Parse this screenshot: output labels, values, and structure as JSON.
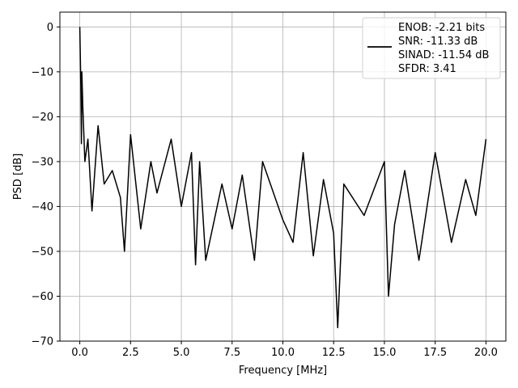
{
  "chart_data": {
    "type": "line",
    "title": "",
    "xlabel": "Frequency [MHz]",
    "ylabel": "PSD [dB]",
    "xlim": [
      -0.98,
      20.98
    ],
    "ylim": [
      -70,
      3.3
    ],
    "xticks": [
      0.0,
      2.5,
      5.0,
      7.5,
      10.0,
      12.5,
      15.0,
      17.5,
      20.0
    ],
    "xtick_labels": [
      "0.0",
      "2.5",
      "5.0",
      "7.5",
      "10.0",
      "12.5",
      "15.0",
      "17.5",
      "20.0"
    ],
    "yticks": [
      0,
      -10,
      -20,
      -30,
      -40,
      -50,
      -60,
      -70
    ],
    "ytick_labels": [
      "0",
      "−10",
      "−20",
      "−30",
      "−40",
      "−50",
      "−60",
      "−70"
    ],
    "grid": true,
    "legend_position": "top-right",
    "legend_entries": [
      "ENOB: -2.21 bits",
      "SNR: -11.33 dB",
      "SINAD: -11.54 dB",
      "SFDR: 3.41"
    ],
    "series": [
      {
        "color": "#000000",
        "x": [
          0.0,
          0.02,
          0.05,
          0.08,
          0.1,
          0.15,
          0.25,
          0.4,
          0.6,
          0.9,
          1.2,
          1.6,
          2.0,
          2.2,
          2.5,
          3.0,
          3.5,
          3.8,
          4.5,
          5.0,
          5.5,
          5.7,
          5.9,
          6.2,
          7.0,
          7.5,
          8.0,
          8.6,
          9.0,
          10.0,
          10.5,
          11.0,
          11.5,
          12.0,
          12.5,
          12.7,
          13.0,
          14.0,
          15.0,
          15.2,
          15.5,
          16.0,
          16.7,
          17.5,
          18.3,
          19.0,
          19.5,
          20.0
        ],
        "y": [
          0,
          -5,
          -13,
          -26,
          -10,
          -18,
          -30,
          -25,
          -41,
          -22,
          -35,
          -32,
          -38,
          -50,
          -24,
          -45,
          -30,
          -37,
          -25,
          -40,
          -28,
          -53,
          -30,
          -52,
          -35,
          -45,
          -33,
          -52,
          -30,
          -43,
          -48,
          -28,
          -51,
          -34,
          -46,
          -67,
          -35,
          -42,
          -30,
          -60,
          -44,
          -32,
          -52,
          -28,
          -48,
          -34,
          -42,
          -25
        ]
      }
    ]
  }
}
